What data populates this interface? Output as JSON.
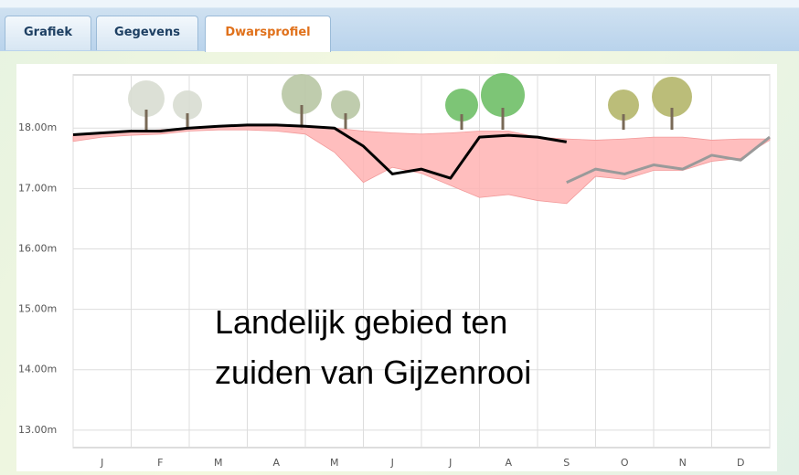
{
  "tabs": [
    {
      "label": "Grafiek",
      "active": false
    },
    {
      "label": "Gegevens",
      "active": false
    },
    {
      "label": "Dwarsprofiel",
      "active": true
    }
  ],
  "chart_data": {
    "type": "line",
    "annotation": [
      "Landelijk gebied ten",
      "zuiden van Gijzenrooi"
    ],
    "categories": [
      "J",
      "F",
      "M",
      "A",
      "M",
      "J",
      "J",
      "A",
      "S",
      "O",
      "N",
      "D"
    ],
    "x": [
      0,
      0.5,
      1,
      1.5,
      2,
      2.5,
      3,
      3.5,
      4,
      4.5,
      5,
      5.5,
      6,
      6.5,
      7,
      7.5,
      8,
      8.5,
      9,
      9.5,
      10,
      10.5,
      11,
      11.5,
      12
    ],
    "xlim": [
      0,
      12
    ],
    "xticks": [
      0,
      1,
      2,
      3,
      4,
      5,
      6,
      7,
      8,
      9,
      10,
      11,
      12
    ],
    "ylim": [
      12.71,
      18.88
    ],
    "yticks": [
      {
        "value": 13,
        "label": "13.00m"
      },
      {
        "value": 14,
        "label": "14.00m"
      },
      {
        "value": 15,
        "label": "15.00m"
      },
      {
        "value": 16,
        "label": "16.00m"
      },
      {
        "value": 17,
        "label": "17.00m"
      },
      {
        "value": 18,
        "label": "18.00m"
      }
    ],
    "grid": true,
    "band": {
      "color": "#ffb3b3",
      "upper": [
        17.9,
        17.92,
        17.95,
        17.97,
        18.0,
        18.02,
        18.03,
        18.03,
        18.02,
        18.0,
        17.95,
        17.92,
        17.9,
        17.92,
        17.95,
        17.95,
        17.85,
        17.82,
        17.8,
        17.82,
        17.85,
        17.85,
        17.8,
        17.82,
        17.82
      ],
      "lower": [
        17.78,
        17.85,
        17.88,
        17.9,
        17.95,
        17.97,
        17.97,
        17.95,
        17.9,
        17.6,
        17.1,
        17.35,
        17.25,
        17.05,
        16.85,
        16.9,
        16.8,
        16.75,
        17.2,
        17.15,
        17.3,
        17.3,
        17.45,
        17.5,
        17.8
      ]
    },
    "series": [
      {
        "color": "#000000",
        "values": [
          17.89,
          17.92,
          17.95,
          17.95,
          18.0,
          18.03,
          18.05,
          18.05,
          18.03,
          18.0,
          17.7,
          17.24,
          17.32,
          17.17,
          17.85,
          17.88,
          17.85,
          17.77,
          null,
          null,
          null,
          null,
          null,
          null,
          null
        ]
      },
      {
        "color": "#9a9a9a",
        "values": [
          null,
          null,
          null,
          null,
          null,
          null,
          null,
          null,
          null,
          null,
          null,
          null,
          null,
          null,
          null,
          null,
          null,
          17.1,
          17.32,
          17.24,
          17.39,
          17.32,
          17.55,
          17.47,
          17.85
        ]
      }
    ]
  }
}
